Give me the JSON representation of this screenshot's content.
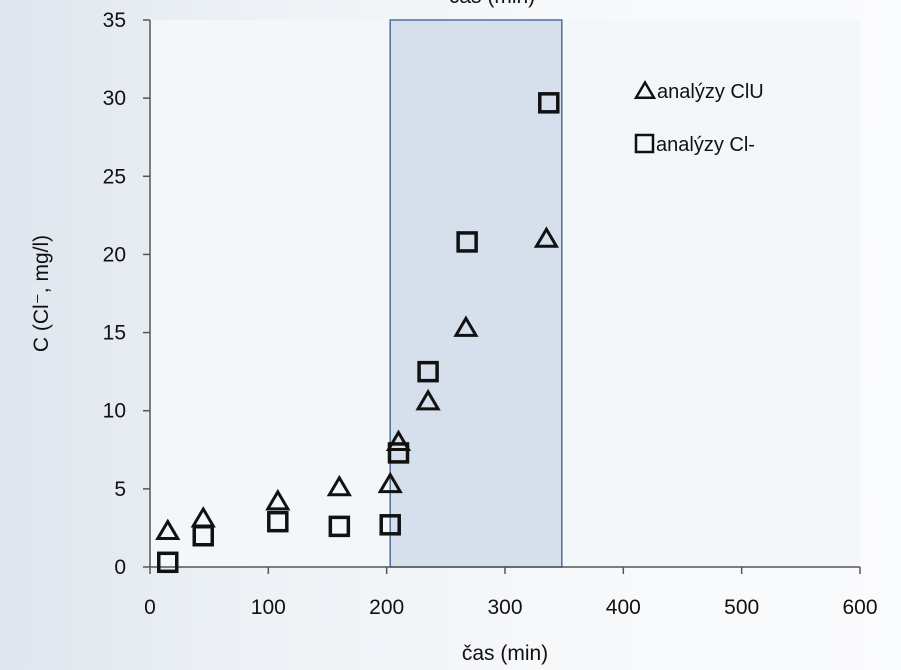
{
  "chart_data": {
    "type": "scatter",
    "title": "",
    "top_label": "čas (min)",
    "xlabel": "čas (min)",
    "ylabel": "C (Cl⁻, mg/l)",
    "xlim": [
      0,
      600
    ],
    "ylim": [
      0,
      35
    ],
    "xticks": [
      0,
      100,
      200,
      300,
      400,
      500,
      600
    ],
    "yticks": [
      0,
      5,
      10,
      15,
      20,
      25,
      30,
      35
    ],
    "grid": false,
    "legend_position": "top-right",
    "highlight_region": {
      "x_from": 203,
      "x_to": 348,
      "color": "#d5e0ec"
    },
    "series": [
      {
        "name": "analýzy ClU",
        "marker": "triangle",
        "points": [
          {
            "x": 15,
            "y": 2.3
          },
          {
            "x": 45,
            "y": 3.1
          },
          {
            "x": 108,
            "y": 4.2
          },
          {
            "x": 160,
            "y": 5.1
          },
          {
            "x": 203,
            "y": 5.3
          },
          {
            "x": 210,
            "y": 8.0
          },
          {
            "x": 235,
            "y": 10.6
          },
          {
            "x": 267,
            "y": 15.3
          },
          {
            "x": 335,
            "y": 21.0
          }
        ]
      },
      {
        "name": "analýzy Cl-",
        "marker": "square",
        "points": [
          {
            "x": 15,
            "y": 0.3
          },
          {
            "x": 45,
            "y": 2.0
          },
          {
            "x": 108,
            "y": 2.9
          },
          {
            "x": 160,
            "y": 2.6
          },
          {
            "x": 203,
            "y": 2.7
          },
          {
            "x": 210,
            "y": 7.3
          },
          {
            "x": 235,
            "y": 12.5
          },
          {
            "x": 268,
            "y": 20.8
          },
          {
            "x": 337,
            "y": 29.7
          }
        ]
      }
    ]
  }
}
